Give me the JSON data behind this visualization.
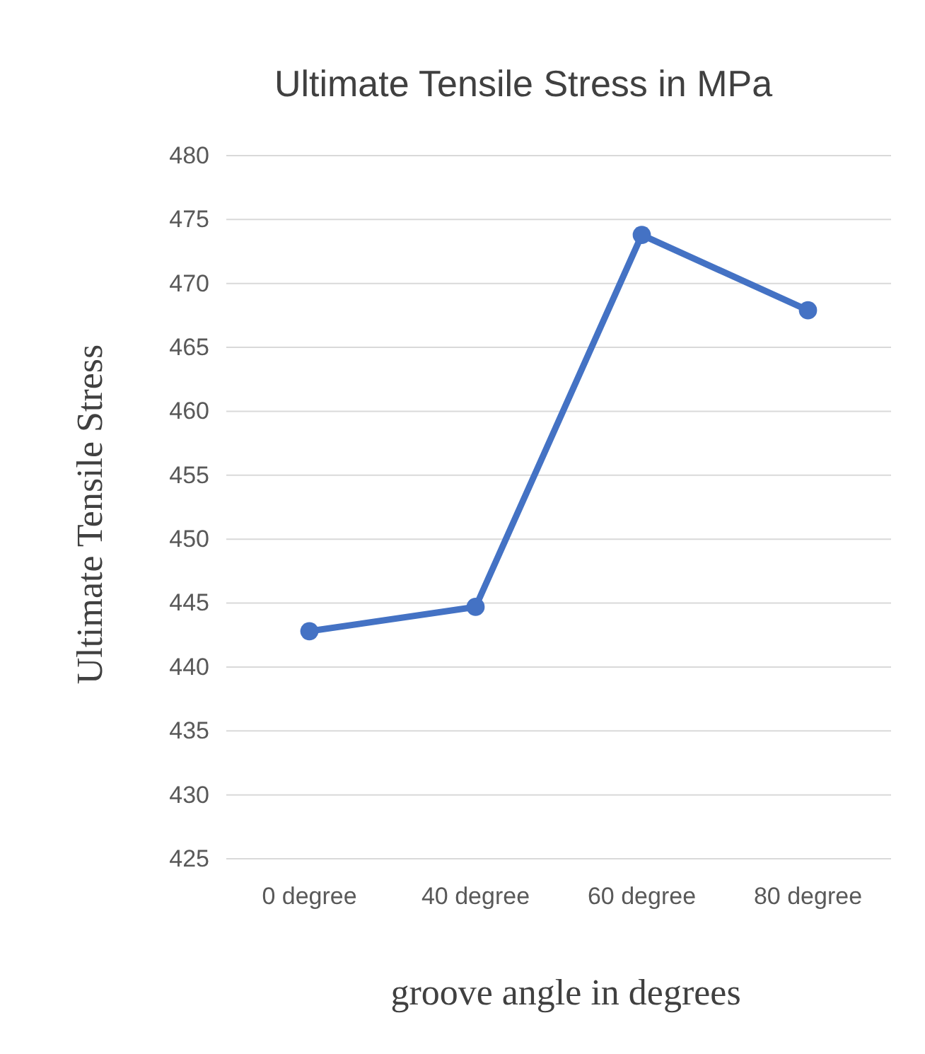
{
  "chart_data": {
    "type": "line",
    "title": "Ultimate Tensile Stress in MPa",
    "xlabel": "groove angle in degrees",
    "ylabel": "Ultimate Tensile Stress",
    "categories": [
      "0 degree",
      "40 degree",
      "60 degree",
      "80 degree"
    ],
    "series": [
      {
        "color": "#4472c4",
        "values": [
          442.8,
          444.7,
          473.8,
          467.9
        ]
      }
    ],
    "ylim": [
      425,
      480
    ],
    "yticks": [
      425,
      430,
      435,
      440,
      445,
      450,
      455,
      460,
      465,
      470,
      475,
      480
    ],
    "grid": "y",
    "marker": "circle",
    "line_style": "solid"
  }
}
